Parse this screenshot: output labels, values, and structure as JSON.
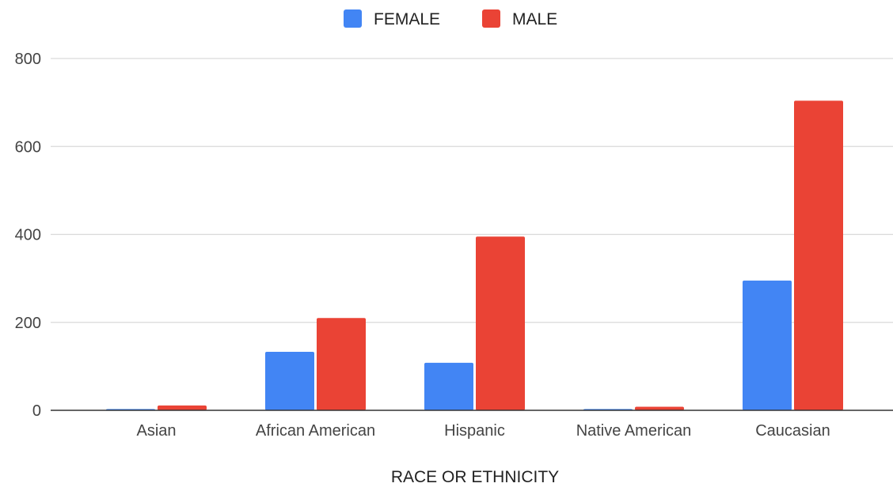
{
  "chart_data": {
    "type": "bar",
    "title": "",
    "xlabel": "RACE OR ETHNICITY",
    "ylabel": "",
    "categories": [
      "Asian",
      "African American",
      "Hispanic",
      "Native American",
      "Caucasian"
    ],
    "series": [
      {
        "name": "FEMALE",
        "color": "#4285f4",
        "values": [
          3,
          133,
          108,
          3,
          295
        ]
      },
      {
        "name": "MALE",
        "color": "#ea4335",
        "values": [
          11,
          210,
          395,
          8,
          704
        ]
      }
    ],
    "ylim": [
      0,
      800
    ],
    "yticks": [
      0,
      200,
      400,
      600,
      800
    ],
    "grid": true,
    "legend_position": "top-center"
  }
}
